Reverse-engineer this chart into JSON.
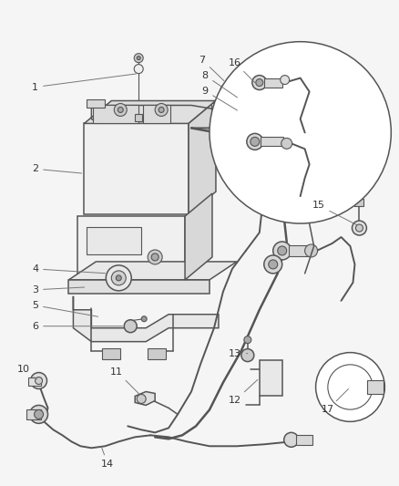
{
  "bg_color": "#f5f5f5",
  "line_color": "#555555",
  "label_color": "#333333",
  "fig_width": 4.39,
  "fig_height": 5.33
}
